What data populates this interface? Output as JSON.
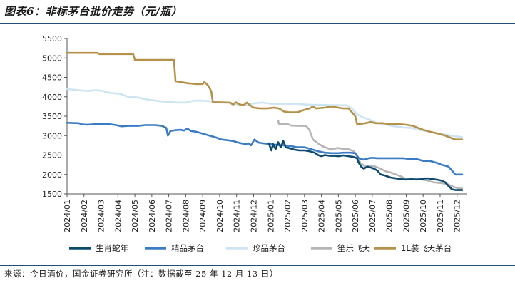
{
  "title": "图表6：非标茅台批价走势（元/瓶）",
  "source": "来源：今日酒价，国金证券研究所（注：数据截至 25 年 12 月 13 日）",
  "chart_data": {
    "type": "line",
    "title": "图表6：非标茅台批价走势（元/瓶）",
    "xlabel": "",
    "ylabel": "元/瓶",
    "ylim": [
      1500,
      5500
    ],
    "yticks": [
      1500,
      2000,
      2500,
      3000,
      3500,
      4000,
      4500,
      5000,
      5500
    ],
    "xlim": [
      0,
      23.6
    ],
    "categories": [
      "2024/01",
      "2024/02",
      "2024/03",
      "2024/04",
      "2024/05",
      "2024/06",
      "2024/07",
      "2024/08",
      "2024/09",
      "2024/10",
      "2024/11",
      "2024/12",
      "2025/01",
      "2025/02",
      "2025/03",
      "2025/04",
      "2025/05",
      "2025/06",
      "2025/07",
      "2025/08",
      "2025/09",
      "2025/10",
      "2025/11",
      "2025/12"
    ],
    "legend_position": "bottom",
    "series": [
      {
        "name": "生肖蛇年",
        "color": "#0d4a70",
        "points": [
          [
            11.9,
            2800
          ],
          [
            12.05,
            2620
          ],
          [
            12.15,
            2780
          ],
          [
            12.3,
            2650
          ],
          [
            12.45,
            2830
          ],
          [
            12.6,
            2700
          ],
          [
            12.75,
            2860
          ],
          [
            12.9,
            2700
          ],
          [
            13.1,
            2680
          ],
          [
            13.4,
            2640
          ],
          [
            13.7,
            2620
          ],
          [
            14.0,
            2620
          ],
          [
            14.3,
            2600
          ],
          [
            14.6,
            2560
          ],
          [
            14.8,
            2500
          ],
          [
            15.0,
            2470
          ],
          [
            15.2,
            2500
          ],
          [
            15.5,
            2480
          ],
          [
            15.8,
            2480
          ],
          [
            16.0,
            2470
          ],
          [
            16.3,
            2490
          ],
          [
            16.6,
            2470
          ],
          [
            16.9,
            2450
          ],
          [
            17.1,
            2420
          ],
          [
            17.2,
            2300
          ],
          [
            17.35,
            2200
          ],
          [
            17.5,
            2150
          ],
          [
            17.7,
            2200
          ],
          [
            17.9,
            2180
          ],
          [
            18.1,
            2150
          ],
          [
            18.3,
            2100
          ],
          [
            18.5,
            2000
          ],
          [
            18.7,
            1980
          ],
          [
            18.9,
            1950
          ],
          [
            19.1,
            1920
          ],
          [
            19.4,
            1900
          ],
          [
            19.7,
            1880
          ],
          [
            20.0,
            1870
          ],
          [
            20.3,
            1880
          ],
          [
            20.6,
            1870
          ],
          [
            20.9,
            1880
          ],
          [
            21.1,
            1900
          ],
          [
            21.3,
            1900
          ],
          [
            21.6,
            1880
          ],
          [
            21.9,
            1860
          ],
          [
            22.1,
            1840
          ],
          [
            22.3,
            1800
          ],
          [
            22.5,
            1700
          ],
          [
            22.7,
            1620
          ],
          [
            22.9,
            1600
          ],
          [
            23.1,
            1600
          ],
          [
            23.3,
            1600
          ]
        ]
      },
      {
        "name": "精品茅台",
        "color": "#3b7cc4",
        "points": [
          [
            0,
            3330
          ],
          [
            0.7,
            3320
          ],
          [
            0.85,
            3290
          ],
          [
            1.2,
            3280
          ],
          [
            1.8,
            3300
          ],
          [
            2.4,
            3300
          ],
          [
            2.9,
            3270
          ],
          [
            3.2,
            3240
          ],
          [
            3.6,
            3250
          ],
          [
            4.2,
            3250
          ],
          [
            4.6,
            3270
          ],
          [
            5.2,
            3270
          ],
          [
            5.6,
            3250
          ],
          [
            5.85,
            3200
          ],
          [
            5.95,
            3000
          ],
          [
            6.1,
            3120
          ],
          [
            6.4,
            3140
          ],
          [
            6.7,
            3150
          ],
          [
            6.9,
            3130
          ],
          [
            7.1,
            3180
          ],
          [
            7.3,
            3120
          ],
          [
            7.6,
            3100
          ],
          [
            8.0,
            3050
          ],
          [
            8.4,
            3000
          ],
          [
            8.8,
            2950
          ],
          [
            9.1,
            2900
          ],
          [
            9.5,
            2880
          ],
          [
            9.8,
            2860
          ],
          [
            10.1,
            2820
          ],
          [
            10.5,
            2780
          ],
          [
            10.7,
            2800
          ],
          [
            10.85,
            2750
          ],
          [
            11.05,
            2900
          ],
          [
            11.3,
            2820
          ],
          [
            11.6,
            2800
          ],
          [
            12.0,
            2780
          ],
          [
            12.4,
            2760
          ],
          [
            12.8,
            2750
          ],
          [
            13.2,
            2730
          ],
          [
            13.6,
            2700
          ],
          [
            14.0,
            2700
          ],
          [
            14.4,
            2650
          ],
          [
            14.8,
            2600
          ],
          [
            15.2,
            2560
          ],
          [
            15.6,
            2550
          ],
          [
            16.0,
            2550
          ],
          [
            16.3,
            2560
          ],
          [
            16.7,
            2560
          ],
          [
            17.0,
            2550
          ],
          [
            17.2,
            2420
          ],
          [
            17.5,
            2380
          ],
          [
            17.8,
            2420
          ],
          [
            18.0,
            2430
          ],
          [
            18.3,
            2420
          ],
          [
            18.7,
            2420
          ],
          [
            19.2,
            2420
          ],
          [
            19.8,
            2420
          ],
          [
            20.2,
            2400
          ],
          [
            20.6,
            2400
          ],
          [
            21.0,
            2350
          ],
          [
            21.4,
            2350
          ],
          [
            21.8,
            2300
          ],
          [
            22.1,
            2250
          ],
          [
            22.5,
            2200
          ],
          [
            22.7,
            2100
          ],
          [
            22.9,
            2000
          ],
          [
            23.3,
            2000
          ]
        ]
      },
      {
        "name": "珍品茅台",
        "color": "#cde4f3",
        "points": [
          [
            0,
            4200
          ],
          [
            0.6,
            4170
          ],
          [
            1.2,
            4150
          ],
          [
            1.7,
            4170
          ],
          [
            2.1,
            4150
          ],
          [
            2.5,
            4100
          ],
          [
            3.1,
            4080
          ],
          [
            3.6,
            4000
          ],
          [
            4.2,
            3980
          ],
          [
            4.7,
            3930
          ],
          [
            5.2,
            3900
          ],
          [
            5.6,
            3880
          ],
          [
            6.0,
            3870
          ],
          [
            6.5,
            3850
          ],
          [
            7.0,
            3850
          ],
          [
            7.5,
            3900
          ],
          [
            8.0,
            3900
          ],
          [
            8.5,
            3880
          ],
          [
            9.0,
            3850
          ],
          [
            9.6,
            3850
          ],
          [
            10.1,
            3800
          ],
          [
            10.6,
            3780
          ],
          [
            11.0,
            3830
          ],
          [
            11.5,
            3850
          ],
          [
            12.0,
            3820
          ],
          [
            12.5,
            3820
          ],
          [
            13.0,
            3820
          ],
          [
            13.5,
            3820
          ],
          [
            14.1,
            3800
          ],
          [
            14.6,
            3790
          ],
          [
            15.1,
            3790
          ],
          [
            15.6,
            3780
          ],
          [
            16.1,
            3780
          ],
          [
            16.5,
            3780
          ],
          [
            16.8,
            3700
          ],
          [
            17.1,
            3550
          ],
          [
            17.4,
            3480
          ],
          [
            17.9,
            3400
          ],
          [
            18.3,
            3320
          ],
          [
            18.8,
            3280
          ],
          [
            19.3,
            3240
          ],
          [
            19.8,
            3210
          ],
          [
            20.3,
            3200
          ],
          [
            20.8,
            3150
          ],
          [
            21.4,
            3100
          ],
          [
            21.9,
            3050
          ],
          [
            22.4,
            3020
          ],
          [
            22.8,
            2990
          ],
          [
            23.3,
            2960
          ]
        ]
      },
      {
        "name": "笙乐飞天",
        "color": "#b5b5b5",
        "points": [
          [
            12.45,
            3380
          ],
          [
            12.5,
            3300
          ],
          [
            13.0,
            3300
          ],
          [
            13.2,
            3260
          ],
          [
            13.7,
            3250
          ],
          [
            14.1,
            3250
          ],
          [
            14.3,
            3140
          ],
          [
            14.5,
            2900
          ],
          [
            14.8,
            2800
          ],
          [
            15.1,
            2720
          ],
          [
            15.5,
            2650
          ],
          [
            16.0,
            2680
          ],
          [
            16.3,
            2660
          ],
          [
            16.6,
            2650
          ],
          [
            16.9,
            2600
          ],
          [
            17.1,
            2470
          ],
          [
            17.3,
            2300
          ],
          [
            17.6,
            2200
          ],
          [
            17.9,
            2230
          ],
          [
            18.2,
            2200
          ],
          [
            18.5,
            2150
          ],
          [
            18.8,
            2080
          ],
          [
            19.1,
            2050
          ],
          [
            19.4,
            2000
          ],
          [
            19.7,
            1950
          ],
          [
            20.0,
            1880
          ],
          [
            20.4,
            1880
          ],
          [
            20.8,
            1880
          ],
          [
            21.2,
            1850
          ],
          [
            21.6,
            1800
          ],
          [
            22.0,
            1780
          ],
          [
            22.4,
            1760
          ],
          [
            22.8,
            1680
          ],
          [
            23.1,
            1640
          ],
          [
            23.3,
            1640
          ]
        ]
      },
      {
        "name": "1L装飞天茅台",
        "color": "#b5914a",
        "points": [
          [
            0,
            5130
          ],
          [
            1.8,
            5130
          ],
          [
            1.9,
            5100
          ],
          [
            3.9,
            5100
          ],
          [
            4.0,
            4950
          ],
          [
            6.3,
            4950
          ],
          [
            6.4,
            4400
          ],
          [
            6.7,
            4380
          ],
          [
            7.1,
            4350
          ],
          [
            7.6,
            4330
          ],
          [
            8.0,
            4330
          ],
          [
            8.1,
            4380
          ],
          [
            8.3,
            4300
          ],
          [
            8.5,
            4150
          ],
          [
            8.6,
            3860
          ],
          [
            8.9,
            3860
          ],
          [
            9.6,
            3850
          ],
          [
            9.8,
            3800
          ],
          [
            9.95,
            3860
          ],
          [
            10.2,
            3800
          ],
          [
            10.4,
            3780
          ],
          [
            10.6,
            3850
          ],
          [
            10.8,
            3780
          ],
          [
            11.0,
            3720
          ],
          [
            11.4,
            3700
          ],
          [
            11.8,
            3700
          ],
          [
            12.2,
            3720
          ],
          [
            12.5,
            3700
          ],
          [
            12.8,
            3620
          ],
          [
            13.1,
            3600
          ],
          [
            13.6,
            3600
          ],
          [
            13.9,
            3650
          ],
          [
            14.3,
            3700
          ],
          [
            14.5,
            3750
          ],
          [
            14.7,
            3700
          ],
          [
            15.2,
            3720
          ],
          [
            15.6,
            3750
          ],
          [
            16.0,
            3720
          ],
          [
            16.3,
            3700
          ],
          [
            16.6,
            3700
          ],
          [
            16.8,
            3600
          ],
          [
            17.0,
            3500
          ],
          [
            17.1,
            3300
          ],
          [
            17.3,
            3300
          ],
          [
            17.6,
            3320
          ],
          [
            17.9,
            3350
          ],
          [
            18.2,
            3320
          ],
          [
            18.6,
            3320
          ],
          [
            19.0,
            3300
          ],
          [
            19.5,
            3300
          ],
          [
            20.0,
            3280
          ],
          [
            20.4,
            3250
          ],
          [
            20.7,
            3200
          ],
          [
            21.0,
            3150
          ],
          [
            21.4,
            3100
          ],
          [
            21.9,
            3050
          ],
          [
            22.3,
            3000
          ],
          [
            22.6,
            2950
          ],
          [
            22.9,
            2900
          ],
          [
            23.3,
            2900
          ]
        ]
      }
    ]
  }
}
